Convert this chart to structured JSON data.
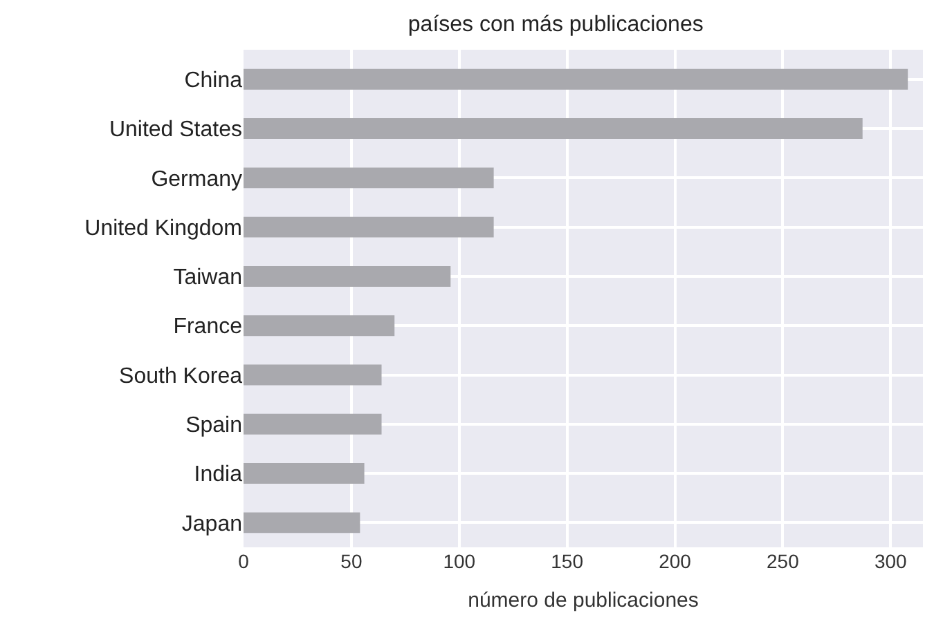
{
  "chart_data": {
    "type": "bar",
    "orientation": "horizontal",
    "title": "países con más publicaciones",
    "xlabel": "número de publicaciones",
    "categories": [
      "China",
      "United States",
      "Germany",
      "United Kingdom",
      "Taiwan",
      "France",
      "South Korea",
      "Spain",
      "India",
      "Japan"
    ],
    "values": [
      308,
      287,
      116,
      116,
      96,
      70,
      64,
      64,
      56,
      54
    ],
    "color": "#a9a9ae",
    "xlim": [
      0,
      315
    ],
    "xticks": [
      0,
      50,
      100,
      150,
      200,
      250,
      300
    ],
    "grid": true,
    "legend": false
  }
}
